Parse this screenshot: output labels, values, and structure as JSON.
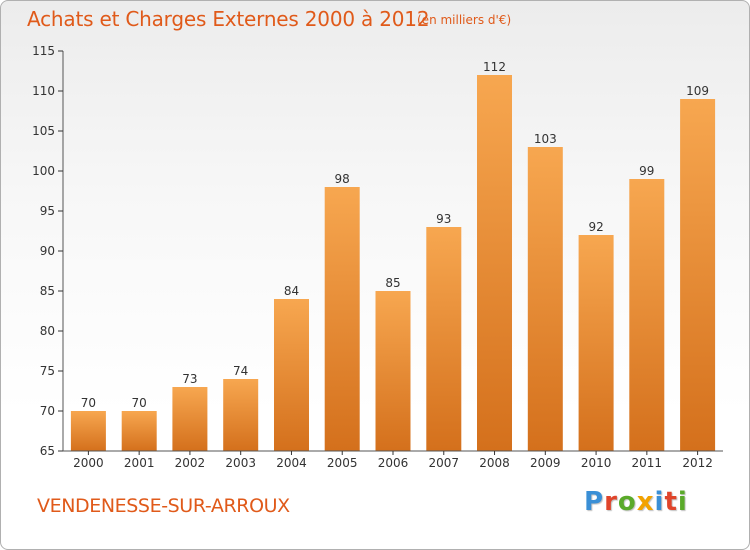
{
  "header": {
    "title": "Achats et Charges Externes 2000 à 2012",
    "subtitle": "(en milliers d'€)"
  },
  "footer": {
    "commune": "VENDENESSE-SUR-ARROUX",
    "logo_letters": [
      {
        "ch": "P",
        "color": "#3a8fd6"
      },
      {
        "ch": "r",
        "color": "#e0442a"
      },
      {
        "ch": "o",
        "color": "#5aaa2a"
      },
      {
        "ch": "x",
        "color": "#f2a200"
      },
      {
        "ch": "i",
        "color": "#3a8fd6"
      },
      {
        "ch": "t",
        "color": "#e0442a"
      },
      {
        "ch": "i",
        "color": "#5aaa2a"
      }
    ]
  },
  "colors": {
    "accent": "#e05a1a",
    "bar_light": "#f7a750",
    "bar_dark": "#d4701c",
    "axis": "#555555",
    "grid_tick": "#333333"
  },
  "chart_data": {
    "type": "bar",
    "title": "Achats et Charges Externes 2000 à 2012",
    "subtitle": "(en milliers d'€)",
    "categories": [
      "2000",
      "2001",
      "2002",
      "2003",
      "2004",
      "2005",
      "2006",
      "2007",
      "2008",
      "2009",
      "2010",
      "2011",
      "2012"
    ],
    "values": [
      70,
      70,
      73,
      74,
      84,
      98,
      85,
      93,
      112,
      103,
      92,
      99,
      109
    ],
    "ylim": [
      65,
      115
    ],
    "yticks": [
      65,
      70,
      75,
      80,
      85,
      90,
      95,
      100,
      105,
      110,
      115
    ],
    "grid": false,
    "data_labels": true,
    "xlabel": "",
    "ylabel": ""
  }
}
